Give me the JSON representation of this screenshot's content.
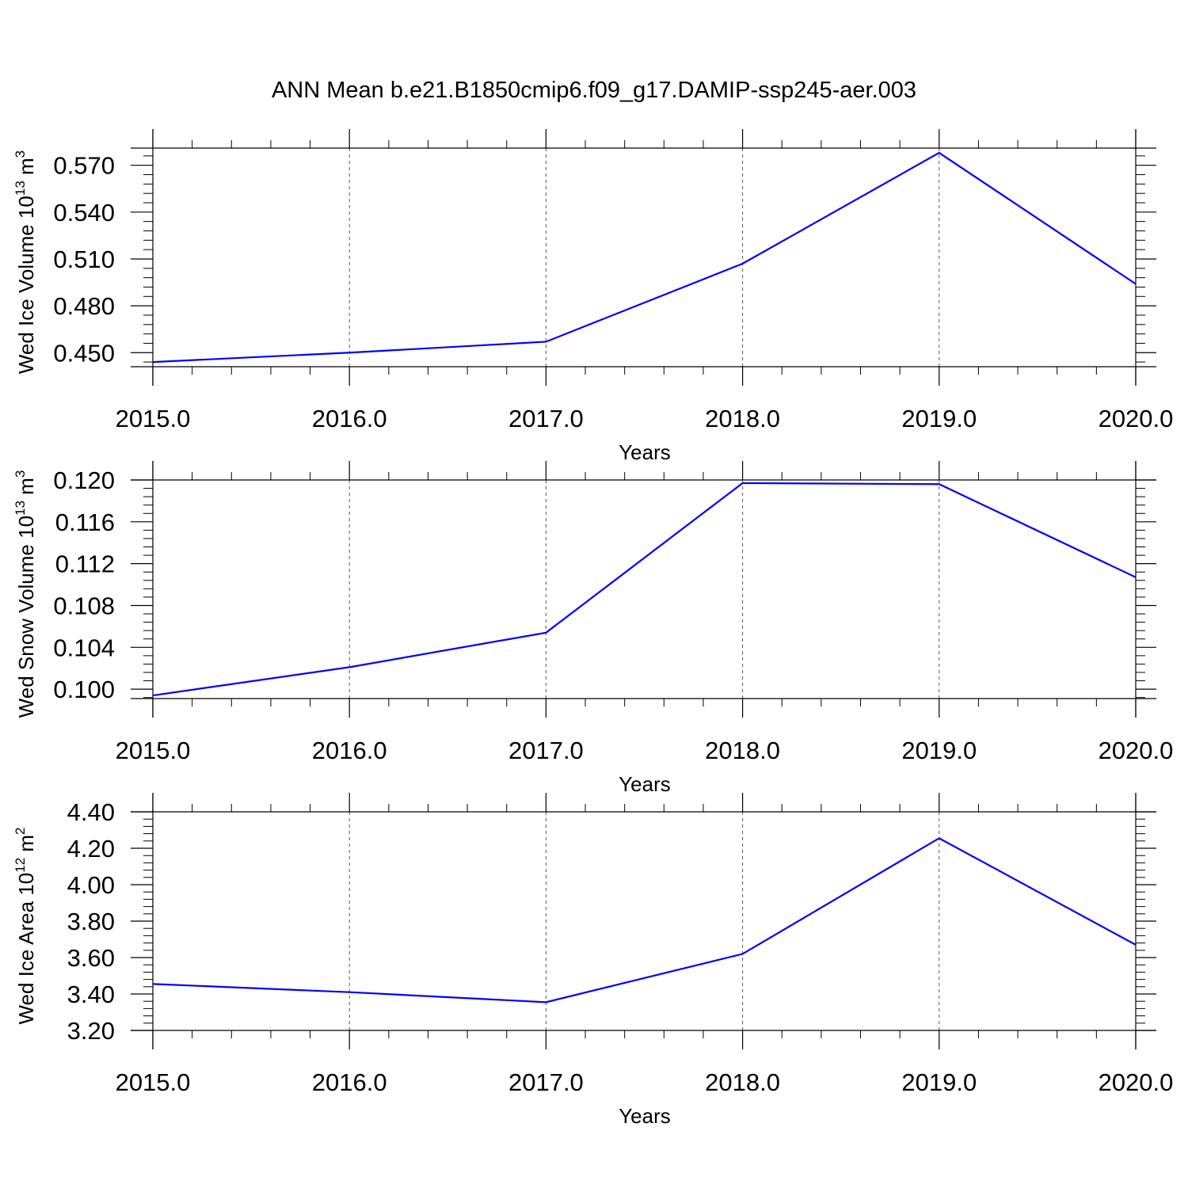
{
  "title": "ANN Mean b.e21.B1850cmip6.f09_g17.DAMIP-ssp245-aer.003",
  "colors": {
    "series": "#0000ff",
    "axis": "#000000",
    "grid": "#555555"
  },
  "chart_data": [
    {
      "type": "line",
      "ylabel": {
        "base": "Wed Ice Volume 10",
        "exp": "13",
        "unit": " m",
        "unit_exp": "3"
      },
      "xlabel": "Years",
      "x": [
        2015,
        2016,
        2017,
        2018,
        2019,
        2020
      ],
      "series": [
        {
          "values": [
            0.444,
            0.45,
            0.457,
            0.507,
            0.578,
            0.494
          ]
        }
      ],
      "xlim": [
        2015,
        2020
      ],
      "ylim": [
        0.441,
        0.581
      ],
      "yticks": [
        0.45,
        0.48,
        0.51,
        0.54,
        0.57
      ],
      "ytick_labels": [
        "0.450",
        "0.480",
        "0.510",
        "0.540",
        "0.570"
      ],
      "yminor_step": 0.006,
      "xticks": [
        2015,
        2016,
        2017,
        2018,
        2019,
        2020
      ],
      "xtick_labels": [
        "2015.0",
        "2016.0",
        "2017.0",
        "2018.0",
        "2019.0",
        "2020.0"
      ],
      "xminor_step": 0.2,
      "grid": "vertical-dashed"
    },
    {
      "type": "line",
      "ylabel": {
        "base": "Wed Snow Volume 10",
        "exp": "13",
        "unit": " m",
        "unit_exp": "3"
      },
      "xlabel": "Years",
      "x": [
        2015,
        2016,
        2017,
        2018,
        2019,
        2020
      ],
      "series": [
        {
          "values": [
            0.0994,
            0.1021,
            0.1054,
            0.1197,
            0.1196,
            0.1107
          ]
        }
      ],
      "xlim": [
        2015,
        2020
      ],
      "ylim": [
        0.0991,
        0.12
      ],
      "yticks": [
        0.1,
        0.104,
        0.108,
        0.112,
        0.116,
        0.12
      ],
      "ytick_labels": [
        "0.100",
        "0.104",
        "0.108",
        "0.112",
        "0.116",
        "0.120"
      ],
      "yminor_step": 0.0008,
      "xticks": [
        2015,
        2016,
        2017,
        2018,
        2019,
        2020
      ],
      "xtick_labels": [
        "2015.0",
        "2016.0",
        "2017.0",
        "2018.0",
        "2019.0",
        "2020.0"
      ],
      "xminor_step": 0.2,
      "grid": "vertical-dashed"
    },
    {
      "type": "line",
      "ylabel": {
        "base": "Wed Ice Area 10",
        "exp": "12",
        "unit": " m",
        "unit_exp": "2"
      },
      "xlabel": "Years",
      "x": [
        2015,
        2016,
        2017,
        2018,
        2019,
        2020
      ],
      "series": [
        {
          "values": [
            3.455,
            3.41,
            3.355,
            3.62,
            4.255,
            3.67
          ]
        }
      ],
      "xlim": [
        2015,
        2020
      ],
      "ylim": [
        3.2,
        4.4
      ],
      "yticks": [
        3.2,
        3.4,
        3.6,
        3.8,
        4.0,
        4.2,
        4.4
      ],
      "ytick_labels": [
        "3.20",
        "3.40",
        "3.60",
        "3.80",
        "4.00",
        "4.20",
        "4.40"
      ],
      "yminor_step": 0.04,
      "xticks": [
        2015,
        2016,
        2017,
        2018,
        2019,
        2020
      ],
      "xtick_labels": [
        "2015.0",
        "2016.0",
        "2017.0",
        "2018.0",
        "2019.0",
        "2020.0"
      ],
      "xminor_step": 0.2,
      "grid": "vertical-dashed"
    }
  ]
}
